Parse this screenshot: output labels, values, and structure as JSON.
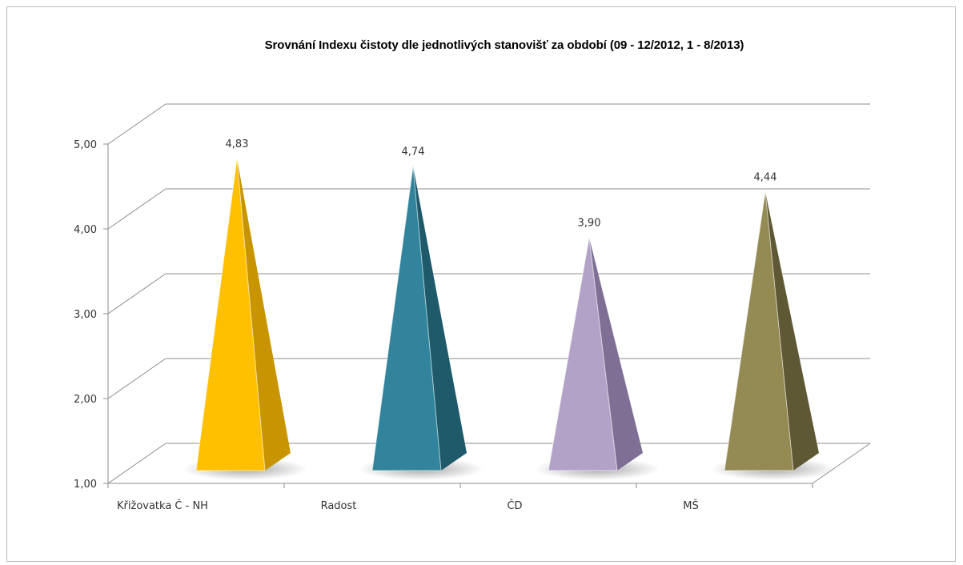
{
  "chart_data": {
    "type": "bar",
    "title": "Srovnání Indexu čistoty dle jednotlivých stanovišť za období (09 - 12/2012, 1 - 8/2013)",
    "xlabel": "",
    "ylabel": "",
    "ylim": [
      1,
      5
    ],
    "yticks": [
      "1,00",
      "2,00",
      "3,00",
      "4,00",
      "5,00"
    ],
    "grid": true,
    "shape": "pyramid",
    "categories": [
      "Křižovatka Č - NH",
      "Radost",
      "ČD",
      "MŠ"
    ],
    "values": [
      4.83,
      4.74,
      3.9,
      4.44
    ],
    "data_labels": [
      "4,83",
      "4,74",
      "3,90",
      "4,44"
    ],
    "colors": [
      {
        "front": "#FFC000",
        "side": "#C89400"
      },
      {
        "front": "#31849B",
        "side": "#1F5A6B"
      },
      {
        "front": "#B3A2C7",
        "side": "#7F6F95"
      },
      {
        "front": "#948A54",
        "side": "#5F5834"
      }
    ]
  }
}
